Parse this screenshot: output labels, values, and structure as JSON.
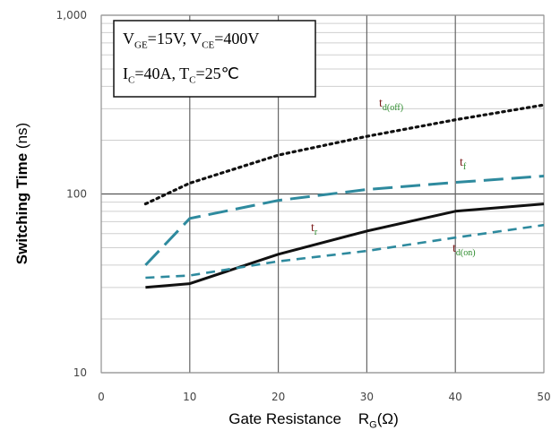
{
  "chart_data": {
    "type": "line",
    "title": "",
    "xlabel": "Gate Resistance",
    "xlabel_symbol": "R",
    "xlabel_sub": "G",
    "xlabel_unit": "(Ω)",
    "ylabel_bold": "Switching Time",
    "ylabel_unit": "(ns)",
    "xlim": [
      0,
      50
    ],
    "ylim": [
      10,
      1000
    ],
    "y_scale": "log",
    "grid": true,
    "x_ticks": [
      0,
      10,
      20,
      30,
      40,
      50
    ],
    "x_tick_labels": [
      "0",
      "10",
      "20",
      "30",
      "40",
      "50"
    ],
    "y_ticks": [
      10,
      100,
      1000
    ],
    "y_tick_labels": [
      "10",
      "100",
      "1,000"
    ],
    "conditions": {
      "line1": "V_GE=15V, V_CE=400V",
      "line2": "I_C=40A, T_C=25℃"
    },
    "series": [
      {
        "name": "td(off)",
        "label_main": "t",
        "label_sub": "d(off)",
        "style": "dotted",
        "color": "#111111",
        "x": [
          5,
          10,
          20,
          30,
          40,
          50
        ],
        "y": [
          88,
          115,
          165,
          210,
          260,
          315
        ]
      },
      {
        "name": "tf",
        "label_main": "t",
        "label_sub": "f",
        "style": "long-dash",
        "color": "#2e8a9e",
        "x": [
          5,
          10,
          20,
          30,
          40,
          50
        ],
        "y": [
          40,
          73,
          92,
          106,
          116,
          126
        ]
      },
      {
        "name": "tr",
        "label_main": "t",
        "label_sub": "r",
        "style": "solid",
        "color": "#111111",
        "x": [
          5,
          10,
          20,
          30,
          40,
          50
        ],
        "y": [
          30,
          31.5,
          46,
          62,
          80,
          88
        ]
      },
      {
        "name": "td(on)",
        "label_main": "t",
        "label_sub": "d(on)",
        "style": "dash",
        "color": "#2e8a9e",
        "x": [
          5,
          10,
          20,
          30,
          40,
          50
        ],
        "y": [
          34,
          35,
          42,
          48,
          57,
          67
        ]
      }
    ]
  }
}
